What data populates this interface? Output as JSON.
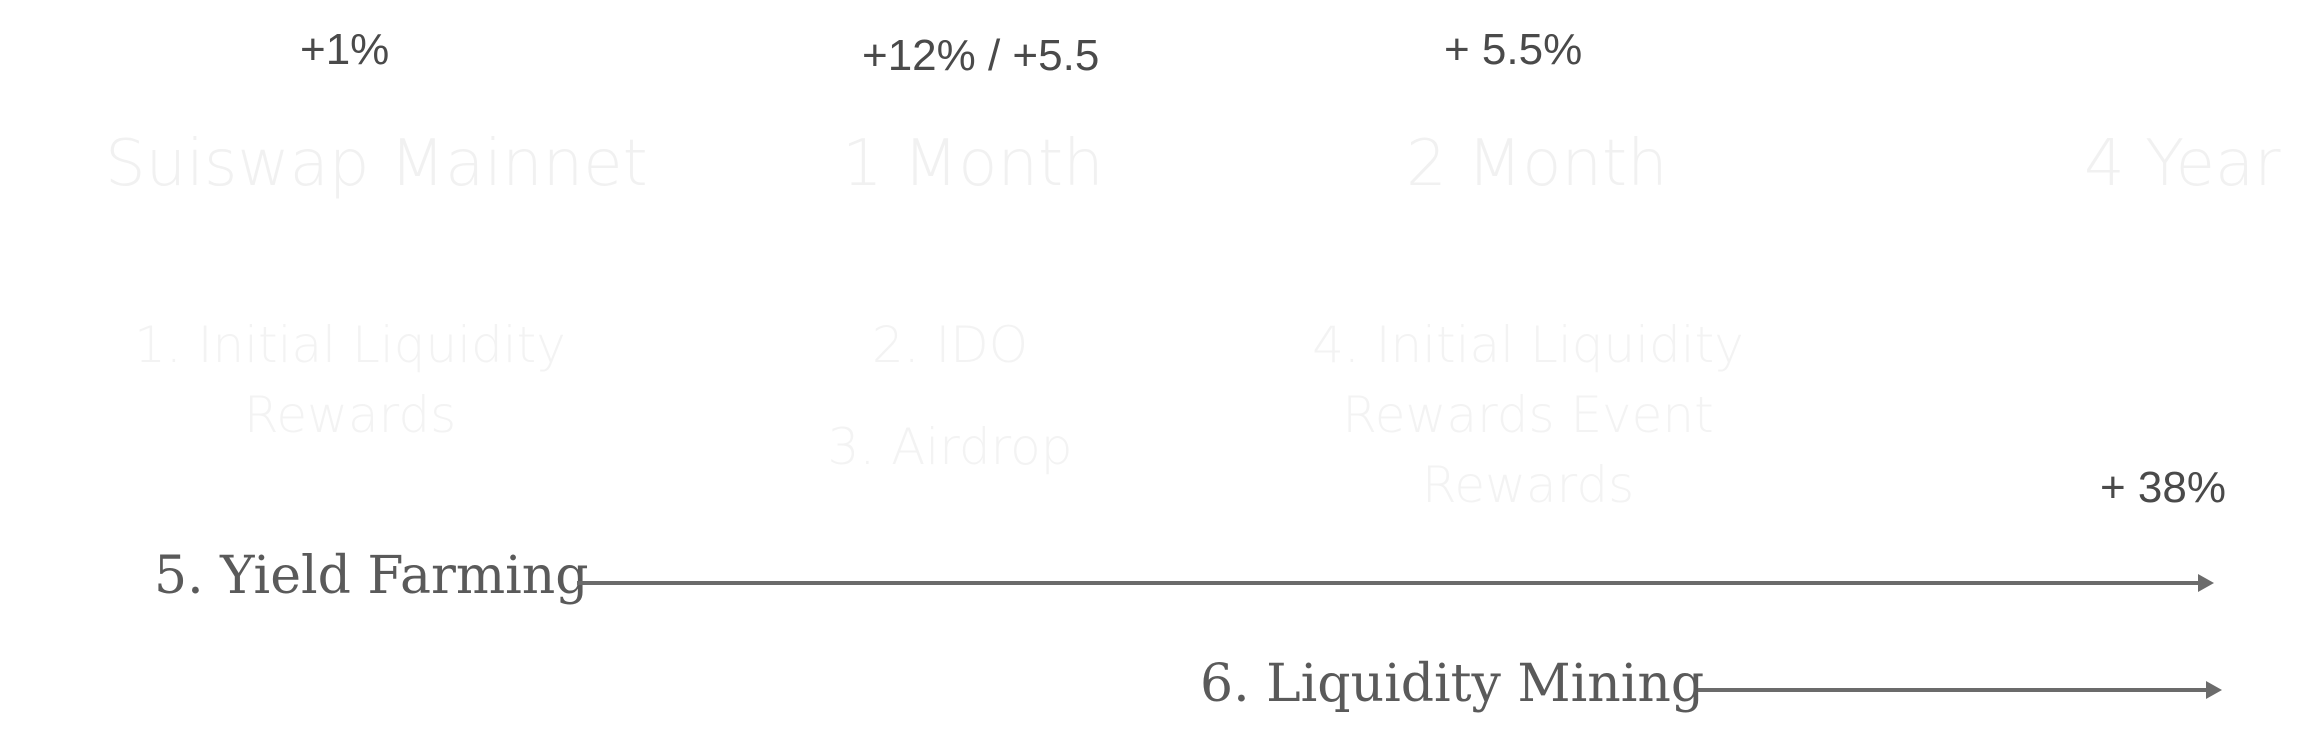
{
  "percentages": {
    "mainnet": "+1%",
    "one_month": "+12% / +5.5",
    "two_month": "+ 5.5%",
    "four_year": "+ 38%"
  },
  "milestones": {
    "mainnet": "Suiswap Mainnet",
    "one_month": "1 Month",
    "two_month": "2 Month",
    "four_year": "4 Year"
  },
  "events": {
    "initial_liquidity_rewards": {
      "line1": "1. Initial Liquidity",
      "line2": "Rewards"
    },
    "ido": "2. IDO",
    "airdrop": "3. Airdrop",
    "initial_liquidity_event_rewards": {
      "line1": "4. Initial Liquidity",
      "line2": "Rewards Event",
      "line3": "Rewards"
    }
  },
  "tracks": {
    "yield_farming": "5. Yield Farming",
    "liquidity_mining": "6. Liquidity Mining"
  },
  "colors": {
    "arrow": "#6b6b6b",
    "percentage_text": "#4a4a4a",
    "faded_text": "#f1f1f1",
    "track_text": "#5a5a5a"
  }
}
